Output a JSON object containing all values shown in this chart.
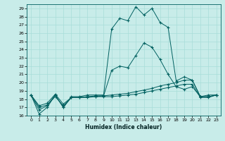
{
  "xlabel": "Humidex (Indice chaleur)",
  "bg_color": "#c8ece9",
  "line_color": "#006060",
  "grid_color": "#a8ddd8",
  "ylim": [
    16,
    29.5
  ],
  "xlim": [
    -0.5,
    23.5
  ],
  "yticks": [
    16,
    17,
    18,
    19,
    20,
    21,
    22,
    23,
    24,
    25,
    26,
    27,
    28,
    29
  ],
  "xticks": [
    0,
    1,
    2,
    3,
    4,
    5,
    6,
    7,
    8,
    9,
    10,
    11,
    12,
    13,
    14,
    15,
    16,
    17,
    18,
    19,
    20,
    21,
    22,
    23
  ],
  "series_main": [
    18.5,
    16.2,
    17.0,
    18.5,
    17.0,
    18.3,
    18.3,
    18.5,
    18.5,
    18.5,
    26.5,
    27.8,
    27.5,
    29.2,
    28.2,
    29.0,
    27.3,
    26.7,
    20.2,
    20.7,
    20.3,
    18.3,
    18.5,
    18.5
  ],
  "series_mid": [
    18.5,
    16.7,
    17.2,
    18.5,
    17.0,
    18.2,
    18.2,
    18.3,
    18.4,
    18.4,
    21.5,
    22.0,
    21.8,
    23.3,
    24.8,
    24.3,
    22.8,
    21.0,
    19.5,
    19.2,
    19.5,
    18.3,
    18.3,
    18.5
  ],
  "series_flat1": [
    18.5,
    17.0,
    17.3,
    18.3,
    17.2,
    18.2,
    18.2,
    18.3,
    18.3,
    18.4,
    18.5,
    18.6,
    18.7,
    18.9,
    19.1,
    19.3,
    19.6,
    19.8,
    20.0,
    20.3,
    20.3,
    18.3,
    18.3,
    18.5
  ],
  "series_flat2": [
    18.5,
    17.2,
    17.5,
    18.6,
    17.4,
    18.2,
    18.2,
    18.2,
    18.3,
    18.3,
    18.3,
    18.4,
    18.5,
    18.6,
    18.8,
    19.0,
    19.2,
    19.4,
    19.6,
    19.8,
    19.8,
    18.2,
    18.2,
    18.5
  ]
}
